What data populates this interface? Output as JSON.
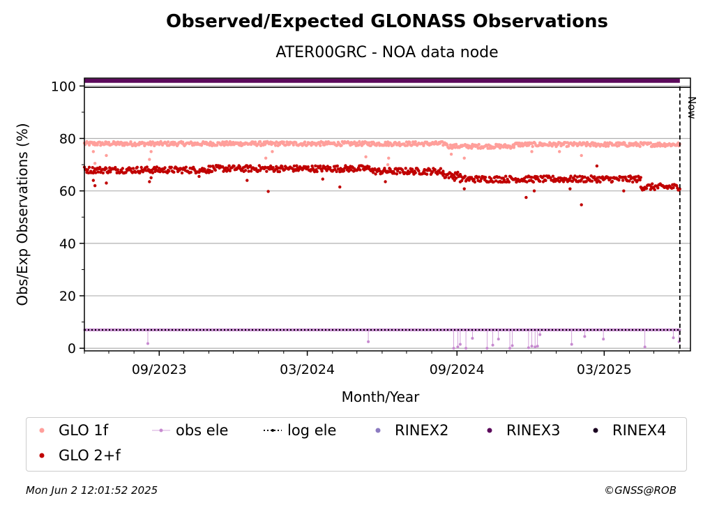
{
  "title": "Observed/Expected GLONASS Observations",
  "subtitle": "ATER00GRC - NOA data node",
  "footer": {
    "timestamp": "Mon Jun  2 12:01:52 2025",
    "credit": "©GNSS@ROB"
  },
  "now_label": "Now",
  "colors": {
    "glo1f": "#ff9f9b",
    "glo2f": "#c00000",
    "obs_ele": "#c78ad0",
    "log_ele": "#000000",
    "rinex2": "#8c7bc1",
    "rinex3": "#5c0a5c",
    "rinex4": "#1a0020",
    "grid": "#b0b0b0"
  },
  "chart_data": {
    "type": "scatter",
    "xlabel": "Month/Year",
    "ylabel": "Obs/Exp Observations (%)",
    "x_ticks": [
      "09/2023",
      "03/2024",
      "09/2024",
      "03/2025"
    ],
    "x_tick_dates": [
      "2023-09-01",
      "2024-03-01",
      "2024-09-01",
      "2025-03-01"
    ],
    "xlim": [
      "2023-06-01",
      "2025-06-15"
    ],
    "now_date": "2025-06-02",
    "y_ticks": [
      0,
      20,
      40,
      60,
      80,
      100
    ],
    "ylim": [
      -1,
      103
    ],
    "grid": "horizontal",
    "legend_placement": "below",
    "series": [
      {
        "name": "GLO 1f",
        "style": "points",
        "color_key": "glo1f",
        "segments": [
          {
            "start": "2023-06-01",
            "end": "2024-08-20",
            "level": 78.0
          },
          {
            "start": "2024-08-20",
            "end": "2024-11-10",
            "level": 77.0
          },
          {
            "start": "2024-11-10",
            "end": "2025-06-02",
            "level": 77.7
          }
        ],
        "outliers": [
          [
            "2023-06-12",
            75.0
          ],
          [
            "2023-06-14",
            70.5
          ],
          [
            "2023-06-28",
            73.5
          ],
          [
            "2023-08-20",
            72.0
          ],
          [
            "2023-08-22",
            75.0
          ],
          [
            "2024-01-10",
            72.5
          ],
          [
            "2024-01-18",
            75.0
          ],
          [
            "2024-05-12",
            73.0
          ],
          [
            "2024-06-08",
            70.0
          ],
          [
            "2024-06-09",
            72.5
          ],
          [
            "2024-08-25",
            74.0
          ],
          [
            "2024-09-10",
            72.5
          ],
          [
            "2024-12-02",
            75.0
          ],
          [
            "2025-01-05",
            75.0
          ],
          [
            "2025-02-01",
            73.5
          ]
        ]
      },
      {
        "name": "GLO 2+f",
        "style": "points",
        "color_key": "glo2f",
        "segments": [
          {
            "start": "2023-06-01",
            "end": "2023-11-01",
            "level": 68.0
          },
          {
            "start": "2023-11-01",
            "end": "2024-05-20",
            "level": 68.5
          },
          {
            "start": "2024-05-20",
            "end": "2024-08-15",
            "level": 67.5
          },
          {
            "start": "2024-08-15",
            "end": "2024-09-05",
            "level": 66.0
          },
          {
            "start": "2024-09-05",
            "end": "2025-04-15",
            "level": 64.5
          },
          {
            "start": "2025-04-15",
            "end": "2025-06-02",
            "level": 61.5
          }
        ],
        "outliers": [
          [
            "2023-06-12",
            64.0
          ],
          [
            "2023-06-14",
            62.0
          ],
          [
            "2023-06-28",
            63.0
          ],
          [
            "2023-08-20",
            63.5
          ],
          [
            "2023-08-22",
            65.0
          ],
          [
            "2023-10-20",
            65.5
          ],
          [
            "2023-12-18",
            64.0
          ],
          [
            "2024-01-13",
            59.8
          ],
          [
            "2024-03-20",
            64.5
          ],
          [
            "2024-04-10",
            61.5
          ],
          [
            "2024-06-05",
            63.5
          ],
          [
            "2024-08-29",
            64.0
          ],
          [
            "2024-09-10",
            60.8
          ],
          [
            "2024-11-25",
            57.5
          ],
          [
            "2024-12-05",
            60.0
          ],
          [
            "2025-01-18",
            60.8
          ],
          [
            "2025-02-01",
            54.7
          ],
          [
            "2025-03-25",
            60.0
          ],
          [
            "2025-02-20",
            69.5
          ]
        ]
      },
      {
        "name": "obs ele",
        "style": "line-points",
        "color_key": "obs_ele",
        "level": 7.0,
        "start": "2023-06-01",
        "end": "2025-06-02",
        "dips": [
          [
            "2023-08-18",
            1.8
          ],
          [
            "2024-05-15",
            2.5
          ],
          [
            "2024-08-28",
            0.0
          ],
          [
            "2024-09-02",
            0.5
          ],
          [
            "2024-09-05",
            1.5
          ],
          [
            "2024-09-12",
            0.0
          ],
          [
            "2024-09-20",
            3.8
          ],
          [
            "2024-10-08",
            0.0
          ],
          [
            "2024-10-15",
            1.2
          ],
          [
            "2024-10-22",
            3.5
          ],
          [
            "2024-11-05",
            0.0
          ],
          [
            "2024-11-08",
            1.0
          ],
          [
            "2024-11-28",
            0.2
          ],
          [
            "2024-12-02",
            0.8
          ],
          [
            "2024-12-06",
            0.5
          ],
          [
            "2024-12-09",
            0.8
          ],
          [
            "2024-12-12",
            5.2
          ],
          [
            "2025-01-20",
            1.5
          ],
          [
            "2025-02-05",
            4.5
          ],
          [
            "2025-02-28",
            3.5
          ],
          [
            "2025-04-20",
            0.5
          ],
          [
            "2025-05-25",
            4.0
          ],
          [
            "2025-06-01",
            2.5
          ]
        ]
      },
      {
        "name": "log ele",
        "style": "dotted-line",
        "color_key": "log_ele",
        "level": 7.0,
        "start": "2023-06-01",
        "end": "2025-06-02"
      },
      {
        "name": "RINEX2",
        "style": "points",
        "color_key": "rinex2",
        "level": null
      },
      {
        "name": "RINEX3",
        "style": "points",
        "color_key": "rinex3",
        "level": 102.0,
        "start": "2023-06-01",
        "end": "2025-06-02"
      },
      {
        "name": "RINEX4",
        "style": "points",
        "color_key": "rinex4",
        "level": null
      }
    ]
  }
}
